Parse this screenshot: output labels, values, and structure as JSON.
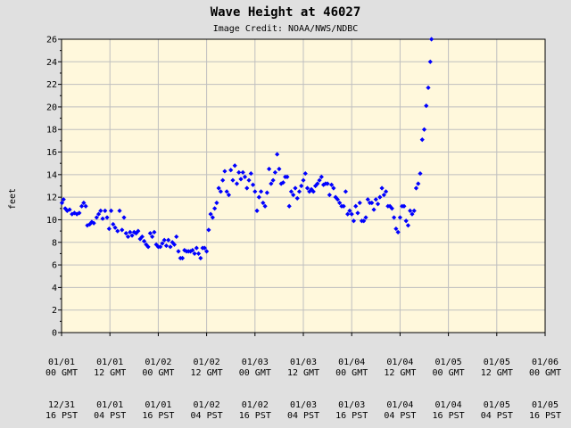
{
  "chart_data": {
    "type": "scatter",
    "title": "Wave Height at 46027",
    "subtitle": "Image Credit: NOAA/NWS/NDBC",
    "ylabel": "feet",
    "xlabel": "",
    "ylim": [
      0,
      26
    ],
    "y_ticks": [
      0,
      2,
      4,
      6,
      8,
      10,
      12,
      14,
      16,
      18,
      20,
      22,
      24,
      26
    ],
    "xlim_hours_from_0101_00GMT": [
      0,
      120
    ],
    "grid": true,
    "colors": {
      "background": "#e0e0e0",
      "plot_area": "#fff8dc",
      "marker": "#0000ff",
      "grid": "#bfbfbf"
    },
    "x_ticks": [
      {
        "gmt_date": "01/01",
        "gmt_time": "00 GMT",
        "local_date": "12/31",
        "local_time": "16 PST"
      },
      {
        "gmt_date": "01/01",
        "gmt_time": "12 GMT",
        "local_date": "01/01",
        "local_time": "04 PST"
      },
      {
        "gmt_date": "01/02",
        "gmt_time": "00 GMT",
        "local_date": "01/01",
        "local_time": "16 PST"
      },
      {
        "gmt_date": "01/02",
        "gmt_time": "12 GMT",
        "local_date": "01/02",
        "local_time": "04 PST"
      },
      {
        "gmt_date": "01/03",
        "gmt_time": "00 GMT",
        "local_date": "01/02",
        "local_time": "16 PST"
      },
      {
        "gmt_date": "01/03",
        "gmt_time": "12 GMT",
        "local_date": "01/03",
        "local_time": "04 PST"
      },
      {
        "gmt_date": "01/04",
        "gmt_time": "00 GMT",
        "local_date": "01/03",
        "local_time": "16 PST"
      },
      {
        "gmt_date": "01/04",
        "gmt_time": "12 GMT",
        "local_date": "01/04",
        "local_time": "04 PST"
      },
      {
        "gmt_date": "01/05",
        "gmt_time": "00 GMT",
        "local_date": "01/04",
        "local_time": "16 PST"
      },
      {
        "gmt_date": "01/05",
        "gmt_time": "12 GMT",
        "local_date": "01/05",
        "local_time": "04 PST"
      },
      {
        "gmt_date": "01/06",
        "gmt_time": "00 GMT",
        "local_date": "01/05",
        "local_time": "16 PST"
      }
    ],
    "series": [
      {
        "marker": "diamond",
        "points": [
          [
            0.1,
            11.5
          ],
          [
            0.5,
            11.8
          ],
          [
            0.9,
            11.0
          ],
          [
            1.4,
            10.8
          ],
          [
            2.0,
            10.9
          ],
          [
            2.6,
            10.5
          ],
          [
            3.2,
            10.6
          ],
          [
            3.8,
            10.5
          ],
          [
            4.4,
            10.6
          ],
          [
            5.0,
            11.2
          ],
          [
            5.5,
            11.5
          ],
          [
            6.0,
            11.2
          ],
          [
            6.4,
            9.5
          ],
          [
            7.0,
            9.6
          ],
          [
            7.5,
            9.8
          ],
          [
            8.0,
            9.7
          ],
          [
            8.7,
            10.2
          ],
          [
            9.2,
            10.5
          ],
          [
            9.7,
            10.8
          ],
          [
            10.2,
            10.1
          ],
          [
            10.8,
            10.8
          ],
          [
            11.3,
            10.2
          ],
          [
            11.8,
            9.2
          ],
          [
            12.3,
            10.8
          ],
          [
            12.8,
            9.6
          ],
          [
            13.3,
            9.3
          ],
          [
            13.9,
            9.0
          ],
          [
            14.4,
            10.8
          ],
          [
            15.0,
            9.1
          ],
          [
            15.5,
            10.2
          ],
          [
            16.0,
            8.8
          ],
          [
            16.5,
            8.5
          ],
          [
            17.0,
            8.9
          ],
          [
            17.5,
            8.6
          ],
          [
            18.0,
            8.9
          ],
          [
            18.5,
            8.8
          ],
          [
            19.0,
            9.0
          ],
          [
            19.5,
            8.3
          ],
          [
            20.0,
            8.5
          ],
          [
            20.5,
            8.1
          ],
          [
            21.0,
            7.8
          ],
          [
            21.5,
            7.6
          ],
          [
            22.0,
            8.8
          ],
          [
            22.5,
            8.5
          ],
          [
            23.0,
            8.9
          ],
          [
            23.5,
            7.8
          ],
          [
            24.0,
            7.6
          ],
          [
            24.5,
            7.6
          ],
          [
            25.0,
            7.9
          ],
          [
            25.5,
            8.2
          ],
          [
            26.0,
            7.7
          ],
          [
            26.5,
            8.2
          ],
          [
            27.0,
            7.6
          ],
          [
            27.5,
            8.0
          ],
          [
            28.0,
            7.8
          ],
          [
            28.5,
            8.5
          ],
          [
            29.0,
            7.2
          ],
          [
            29.5,
            6.6
          ],
          [
            30.0,
            6.6
          ],
          [
            30.5,
            7.3
          ],
          [
            31.0,
            7.2
          ],
          [
            31.5,
            7.2
          ],
          [
            32.0,
            7.2
          ],
          [
            32.5,
            7.3
          ],
          [
            33.0,
            7.0
          ],
          [
            33.5,
            7.5
          ],
          [
            34.0,
            7.0
          ],
          [
            34.5,
            6.6
          ],
          [
            35.0,
            7.5
          ],
          [
            35.5,
            7.5
          ],
          [
            36.0,
            7.2
          ],
          [
            36.5,
            9.1
          ],
          [
            37.0,
            10.5
          ],
          [
            37.5,
            10.2
          ],
          [
            38.0,
            11.0
          ],
          [
            38.5,
            11.5
          ],
          [
            39.0,
            12.8
          ],
          [
            39.5,
            12.5
          ],
          [
            40.0,
            13.5
          ],
          [
            40.5,
            14.3
          ],
          [
            41.0,
            12.5
          ],
          [
            41.5,
            12.2
          ],
          [
            42.0,
            14.4
          ],
          [
            42.5,
            13.5
          ],
          [
            43.0,
            14.8
          ],
          [
            43.5,
            13.2
          ],
          [
            44.0,
            14.2
          ],
          [
            44.5,
            13.6
          ],
          [
            45.0,
            14.2
          ],
          [
            45.5,
            13.8
          ],
          [
            46.0,
            12.8
          ],
          [
            46.5,
            13.5
          ],
          [
            47.0,
            14.1
          ],
          [
            47.5,
            13.1
          ],
          [
            48.0,
            12.5
          ],
          [
            48.5,
            10.8
          ],
          [
            49.0,
            12.0
          ],
          [
            49.5,
            12.5
          ],
          [
            50.0,
            11.5
          ],
          [
            50.5,
            11.2
          ],
          [
            51.0,
            12.4
          ],
          [
            51.5,
            14.5
          ],
          [
            52.0,
            13.2
          ],
          [
            52.5,
            13.5
          ],
          [
            53.0,
            14.2
          ],
          [
            53.5,
            15.8
          ],
          [
            54.0,
            14.5
          ],
          [
            54.5,
            13.2
          ],
          [
            55.0,
            13.3
          ],
          [
            55.5,
            13.8
          ],
          [
            56.0,
            13.8
          ],
          [
            56.5,
            11.2
          ],
          [
            57.0,
            12.5
          ],
          [
            57.5,
            12.2
          ],
          [
            58.0,
            12.8
          ],
          [
            58.5,
            11.9
          ],
          [
            59.0,
            12.5
          ],
          [
            59.5,
            13.0
          ],
          [
            60.0,
            13.5
          ],
          [
            60.5,
            14.1
          ],
          [
            61.0,
            12.8
          ],
          [
            61.5,
            12.5
          ],
          [
            62.0,
            12.7
          ],
          [
            62.5,
            12.5
          ],
          [
            63.0,
            13.0
          ],
          [
            63.5,
            13.2
          ],
          [
            64.0,
            13.5
          ],
          [
            64.5,
            13.8
          ],
          [
            65.0,
            13.1
          ],
          [
            65.5,
            13.2
          ],
          [
            66.0,
            13.2
          ],
          [
            66.5,
            12.2
          ],
          [
            67.0,
            13.1
          ],
          [
            67.5,
            12.8
          ],
          [
            68.0,
            12.0
          ],
          [
            68.5,
            11.8
          ],
          [
            69.0,
            11.5
          ],
          [
            69.5,
            11.2
          ],
          [
            70.0,
            11.2
          ],
          [
            70.5,
            12.5
          ],
          [
            71.0,
            10.5
          ],
          [
            71.5,
            10.8
          ],
          [
            72.0,
            10.5
          ],
          [
            72.5,
            9.9
          ],
          [
            73.0,
            11.2
          ],
          [
            73.5,
            10.6
          ],
          [
            74.0,
            11.5
          ],
          [
            74.5,
            9.9
          ],
          [
            75.0,
            9.9
          ],
          [
            75.5,
            10.2
          ],
          [
            76.0,
            11.8
          ],
          [
            76.5,
            11.5
          ],
          [
            77.0,
            11.5
          ],
          [
            77.5,
            10.9
          ],
          [
            78.0,
            11.8
          ],
          [
            78.5,
            11.4
          ],
          [
            79.0,
            12.0
          ],
          [
            79.5,
            12.8
          ],
          [
            80.0,
            12.2
          ],
          [
            80.5,
            12.5
          ],
          [
            81.0,
            11.2
          ],
          [
            81.5,
            11.2
          ],
          [
            82.0,
            11.0
          ],
          [
            82.5,
            10.2
          ],
          [
            83.0,
            9.2
          ],
          [
            83.5,
            8.9
          ],
          [
            84.0,
            10.2
          ],
          [
            84.5,
            11.2
          ],
          [
            85.0,
            11.2
          ],
          [
            85.5,
            9.9
          ],
          [
            86.0,
            9.5
          ],
          [
            86.5,
            10.8
          ],
          [
            87.0,
            10.5
          ],
          [
            87.5,
            10.8
          ],
          [
            88.0,
            12.8
          ],
          [
            88.5,
            13.2
          ],
          [
            89.0,
            14.1
          ],
          [
            89.5,
            17.1
          ],
          [
            90.0,
            18.0
          ],
          [
            90.5,
            20.1
          ],
          [
            91.0,
            21.7
          ],
          [
            91.5,
            24.0
          ],
          [
            91.8,
            26.0
          ]
        ]
      }
    ]
  }
}
